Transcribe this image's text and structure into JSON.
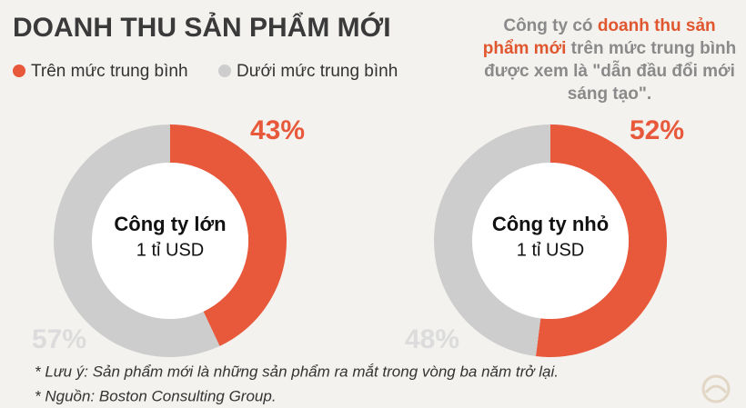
{
  "title": "DOANH THU SẢN PHẨM MỚI",
  "annotation": [
    "Công ty có ",
    "doanh thu sản phẩm mới",
    " trên mức trung bình được xem là \"dẫn đầu đổi mới sáng tạo\"."
  ],
  "note": "* Lưu ý:  Sản phẩm mới là những sản phẩm ra mắt trong vòng ba năm trở lại.",
  "source": "* Nguồn: Boston Consulting Group.",
  "chart_data": [
    {
      "type": "donut",
      "title": "Công ty lớn",
      "subtitle": "1 tỉ USD",
      "categories": [
        "Trên mức trung bình",
        "Dưới mức trung bình"
      ],
      "values": [
        43,
        57
      ],
      "value_labels": [
        "43%",
        "57%"
      ],
      "colors": [
        "#e8583a",
        "#cdcdcd"
      ]
    },
    {
      "type": "donut",
      "title": "Công ty nhỏ",
      "subtitle": "1 tỉ USD",
      "values": [
        52,
        48
      ],
      "value_labels": [
        "52%",
        "48%"
      ],
      "colors": [
        "#e8583a",
        "#cdcdcd"
      ]
    }
  ]
}
